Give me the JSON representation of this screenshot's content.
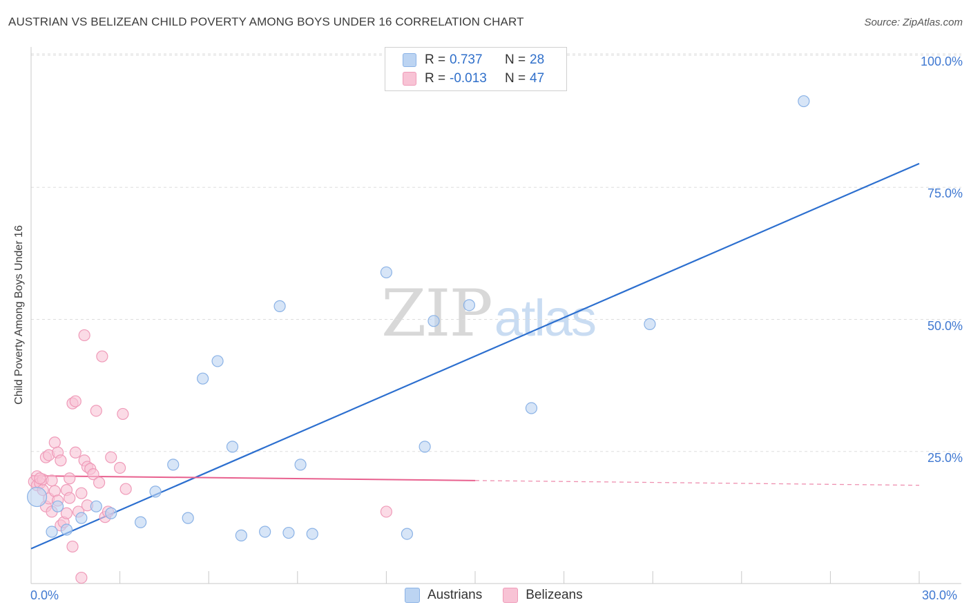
{
  "title": "AUSTRIAN VS BELIZEAN CHILD POVERTY AMONG BOYS UNDER 16 CORRELATION CHART",
  "source": "Source: ZipAtlas.com",
  "watermark": {
    "zip": "ZIP",
    "atlas": "atlas"
  },
  "legend_top": {
    "rows": [
      {
        "r_label": "R =",
        "r_value": "0.737",
        "n_label": "N =",
        "n_value": "28"
      },
      {
        "r_label": "R =",
        "r_value": "-0.013",
        "n_label": "N =",
        "n_value": "47"
      }
    ]
  },
  "legend_bottom": {
    "austrians": "Austrians",
    "belizeans": "Belizeans"
  },
  "colors": {
    "austrians_fill": "#bcd4f2",
    "austrians_stroke": "#8ab2e6",
    "austrians_line": "#2c6fcf",
    "belizeans_fill": "#f8c3d5",
    "belizeans_stroke": "#ef9ab8",
    "belizeans_line": "#e8608e",
    "tick_text": "#3f78d1",
    "grid": "#dddddd"
  },
  "chart_data": {
    "type": "scatter",
    "title": "AUSTRIAN VS BELIZEAN CHILD POVERTY AMONG BOYS UNDER 16 CORRELATION CHART",
    "xlabel": "",
    "ylabel": "Child Poverty Among Boys Under 16",
    "xlim": [
      0,
      30
    ],
    "ylim": [
      0,
      100
    ],
    "x_tick_labels": [
      "0.0%",
      "30.0%"
    ],
    "y_ticks": [
      25,
      50,
      75,
      100
    ],
    "y_tick_labels": [
      "25.0%",
      "50.0%",
      "75.0%",
      "100.0%"
    ],
    "grid": true,
    "series": [
      {
        "name": "Austrians",
        "points": [
          [
            0.2,
            16.4
          ],
          [
            0.7,
            9.8
          ],
          [
            1.2,
            10.2
          ],
          [
            1.7,
            12.4
          ],
          [
            2.2,
            14.6
          ],
          [
            2.7,
            13.3
          ],
          [
            3.7,
            11.6
          ],
          [
            4.2,
            17.4
          ],
          [
            4.8,
            22.5
          ],
          [
            5.3,
            12.4
          ],
          [
            5.8,
            38.8
          ],
          [
            6.3,
            42.1
          ],
          [
            6.8,
            25.9
          ],
          [
            7.1,
            9.1
          ],
          [
            7.9,
            9.8
          ],
          [
            8.4,
            52.5
          ],
          [
            8.7,
            9.6
          ],
          [
            9.1,
            22.5
          ],
          [
            9.5,
            9.4
          ],
          [
            12.0,
            58.9
          ],
          [
            12.7,
            9.4
          ],
          [
            13.3,
            25.9
          ],
          [
            13.6,
            49.7
          ],
          [
            14.8,
            52.7
          ],
          [
            16.9,
            33.2
          ],
          [
            20.9,
            49.1
          ],
          [
            26.1,
            91.3
          ],
          [
            0.9,
            14.6
          ]
        ],
        "trend": {
          "x": [
            0,
            30
          ],
          "y": [
            6.6,
            79.5
          ]
        }
      },
      {
        "name": "Belizeans",
        "points": [
          [
            0.1,
            19.3
          ],
          [
            0.2,
            18.6
          ],
          [
            0.2,
            20.3
          ],
          [
            0.3,
            19.0
          ],
          [
            0.4,
            17.7
          ],
          [
            0.4,
            19.7
          ],
          [
            0.5,
            23.9
          ],
          [
            0.5,
            14.6
          ],
          [
            0.6,
            24.3
          ],
          [
            0.6,
            16.1
          ],
          [
            0.7,
            13.6
          ],
          [
            0.7,
            19.5
          ],
          [
            0.8,
            26.7
          ],
          [
            0.8,
            17.5
          ],
          [
            0.9,
            24.8
          ],
          [
            0.9,
            15.7
          ],
          [
            1.0,
            23.3
          ],
          [
            1.0,
            11.0
          ],
          [
            1.1,
            11.6
          ],
          [
            1.2,
            17.7
          ],
          [
            1.2,
            13.3
          ],
          [
            1.3,
            19.9
          ],
          [
            1.3,
            16.2
          ],
          [
            1.4,
            7.0
          ],
          [
            1.4,
            34.1
          ],
          [
            1.5,
            34.5
          ],
          [
            1.5,
            24.8
          ],
          [
            1.6,
            13.6
          ],
          [
            1.7,
            17.1
          ],
          [
            1.7,
            1.1
          ],
          [
            1.8,
            23.3
          ],
          [
            1.8,
            47.0
          ],
          [
            1.9,
            22.1
          ],
          [
            1.9,
            14.8
          ],
          [
            2.0,
            21.7
          ],
          [
            2.1,
            20.7
          ],
          [
            2.2,
            32.7
          ],
          [
            2.3,
            19.1
          ],
          [
            2.4,
            43.0
          ],
          [
            2.5,
            12.6
          ],
          [
            2.6,
            13.6
          ],
          [
            2.7,
            23.9
          ],
          [
            3.0,
            21.9
          ],
          [
            3.1,
            32.1
          ],
          [
            3.2,
            17.9
          ],
          [
            12.0,
            13.6
          ],
          [
            0.3,
            19.9
          ]
        ],
        "trend": {
          "x": [
            0,
            15
          ],
          "y": [
            20.4,
            19.5
          ]
        },
        "trend_extension": {
          "x": [
            15,
            30
          ],
          "y": [
            19.5,
            18.6
          ]
        }
      }
    ]
  }
}
